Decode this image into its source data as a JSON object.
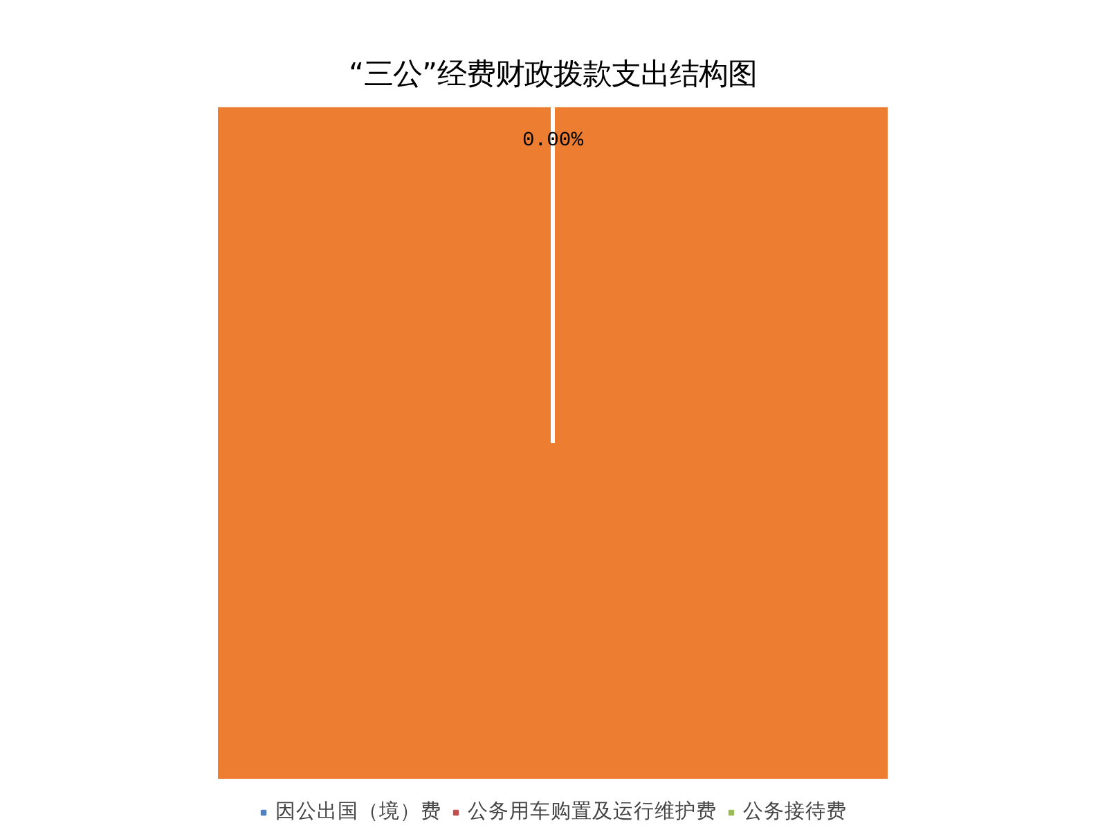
{
  "chart_data": {
    "type": "pie",
    "title": "“三公”经费财政拨款支出结构图",
    "categories": [
      "因公出国（境）费",
      "公务用车购置及运行维护费",
      "公务接待费",
      null
    ],
    "values": [
      0,
      0,
      0,
      100
    ],
    "colors": [
      "#4f81bd",
      "#c0504d",
      "#9bbb59",
      "#ed7d31"
    ],
    "value_labels": [
      "0.00%",
      null,
      null,
      null
    ],
    "legend": "bottom"
  }
}
